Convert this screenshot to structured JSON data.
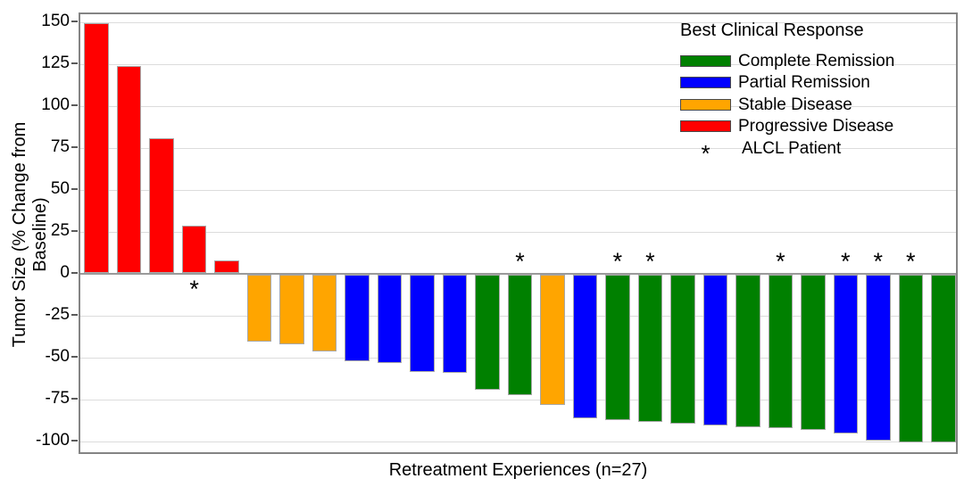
{
  "chart_data": {
    "type": "bar",
    "subtype": "waterfall",
    "title": "",
    "xlabel": "Retreatment Experiences (n=27)",
    "ylabel": "Tumor Size (% Change from Baseline)",
    "n": 27,
    "ylim": [
      -107,
      155
    ],
    "yticks": [
      150,
      125,
      100,
      75,
      50,
      25,
      0,
      -25,
      -50,
      -75,
      -100
    ],
    "grid": "horizontal",
    "legend": {
      "position": "top-right-inside",
      "title": "Best Clinical Response",
      "entries": [
        {
          "label": "Complete Remission",
          "color": "#008000"
        },
        {
          "label": "Partial Remission",
          "color": "#0000FF"
        },
        {
          "label": "Stable Disease",
          "color": "#FFA500"
        },
        {
          "label": "Progressive Disease",
          "color": "#FF0000"
        },
        {
          "label": "ALCL Patient",
          "symbol": "*"
        }
      ]
    },
    "colors": {
      "Complete Remission": "#008000",
      "Partial Remission": "#0000FF",
      "Stable Disease": "#FFA500",
      "Progressive Disease": "#FF0000"
    },
    "marker_meaning": "ALCL Patient",
    "bars": [
      {
        "value": 150,
        "response": "Progressive Disease",
        "alcl": false
      },
      {
        "value": 124,
        "response": "Progressive Disease",
        "alcl": false
      },
      {
        "value": 81,
        "response": "Progressive Disease",
        "alcl": false
      },
      {
        "value": 29,
        "response": "Progressive Disease",
        "alcl": true
      },
      {
        "value": 8,
        "response": "Progressive Disease",
        "alcl": false
      },
      {
        "value": -40,
        "response": "Stable Disease",
        "alcl": false
      },
      {
        "value": -42,
        "response": "Stable Disease",
        "alcl": false
      },
      {
        "value": -46,
        "response": "Stable Disease",
        "alcl": false
      },
      {
        "value": -52,
        "response": "Partial Remission",
        "alcl": false
      },
      {
        "value": -53,
        "response": "Partial Remission",
        "alcl": false
      },
      {
        "value": -58,
        "response": "Partial Remission",
        "alcl": false
      },
      {
        "value": -59,
        "response": "Partial Remission",
        "alcl": false
      },
      {
        "value": -69,
        "response": "Complete Remission",
        "alcl": false
      },
      {
        "value": -72,
        "response": "Complete Remission",
        "alcl": true
      },
      {
        "value": -78,
        "response": "Stable Disease",
        "alcl": false
      },
      {
        "value": -86,
        "response": "Partial Remission",
        "alcl": false
      },
      {
        "value": -87,
        "response": "Complete Remission",
        "alcl": true
      },
      {
        "value": -88,
        "response": "Complete Remission",
        "alcl": true
      },
      {
        "value": -89,
        "response": "Complete Remission",
        "alcl": false
      },
      {
        "value": -90,
        "response": "Partial Remission",
        "alcl": false
      },
      {
        "value": -91,
        "response": "Complete Remission",
        "alcl": false
      },
      {
        "value": -92,
        "response": "Complete Remission",
        "alcl": true
      },
      {
        "value": -93,
        "response": "Complete Remission",
        "alcl": false
      },
      {
        "value": -95,
        "response": "Partial Remission",
        "alcl": true
      },
      {
        "value": -99,
        "response": "Partial Remission",
        "alcl": true
      },
      {
        "value": -100,
        "response": "Complete Remission",
        "alcl": true
      },
      {
        "value": -100,
        "response": "Complete Remission",
        "alcl": false
      }
    ]
  }
}
